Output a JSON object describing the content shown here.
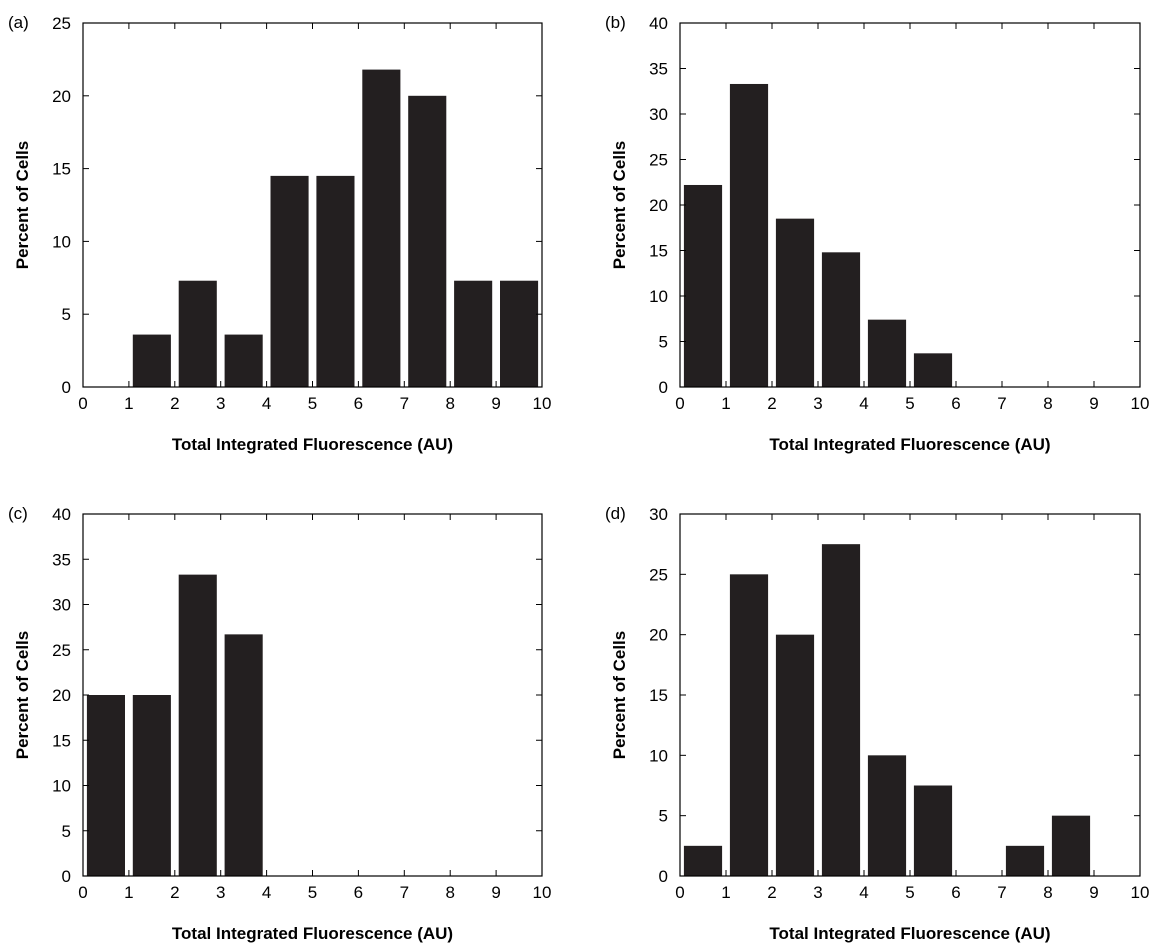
{
  "colors": {
    "bar": "#231f20",
    "axis": "#000000",
    "background": "#ffffff"
  },
  "chart_data": [
    {
      "panel": "(a)",
      "type": "bar",
      "xlabel": "Total Integrated Fluorescence (AU)",
      "ylabel": "Percent of Cells",
      "xlim": [
        0,
        10
      ],
      "ylim": [
        0,
        25
      ],
      "xticks": [
        "0",
        "1",
        "2",
        "3",
        "4",
        "5",
        "6",
        "7",
        "8",
        "9",
        "10"
      ],
      "yticks": [
        "0",
        "5",
        "10",
        "15",
        "20",
        "25"
      ],
      "categories": [
        "0.5",
        "1.5",
        "2.5",
        "3.5",
        "4.5",
        "5.5",
        "6.5",
        "7.5",
        "8.5",
        "9.5"
      ],
      "values": [
        0,
        3.6,
        7.3,
        3.6,
        14.5,
        14.5,
        21.8,
        20.0,
        7.3,
        7.3
      ]
    },
    {
      "panel": "(b)",
      "type": "bar",
      "xlabel": "Total Integrated Fluorescence (AU)",
      "ylabel": "Percent of Cells",
      "xlim": [
        0,
        10
      ],
      "ylim": [
        0,
        40
      ],
      "xticks": [
        "0",
        "1",
        "2",
        "3",
        "4",
        "5",
        "6",
        "7",
        "8",
        "9",
        "10"
      ],
      "yticks": [
        "0",
        "5",
        "10",
        "15",
        "20",
        "25",
        "30",
        "35",
        "40"
      ],
      "categories": [
        "0.5",
        "1.5",
        "2.5",
        "3.5",
        "4.5",
        "5.5",
        "6.5",
        "7.5",
        "8.5",
        "9.5"
      ],
      "values": [
        22.2,
        33.3,
        18.5,
        14.8,
        7.4,
        3.7,
        0,
        0,
        0,
        0
      ]
    },
    {
      "panel": "(c)",
      "type": "bar",
      "xlabel": "Total Integrated Fluorescence (AU)",
      "ylabel": "Percent of Cells",
      "xlim": [
        0,
        10
      ],
      "ylim": [
        0,
        40
      ],
      "xticks": [
        "0",
        "1",
        "2",
        "3",
        "4",
        "5",
        "6",
        "7",
        "8",
        "9",
        "10"
      ],
      "yticks": [
        "0",
        "5",
        "10",
        "15",
        "20",
        "25",
        "30",
        "35",
        "40"
      ],
      "categories": [
        "0.5",
        "1.5",
        "2.5",
        "3.5",
        "4.5",
        "5.5",
        "6.5",
        "7.5",
        "8.5",
        "9.5"
      ],
      "values": [
        20.0,
        20.0,
        33.3,
        26.7,
        0,
        0,
        0,
        0,
        0,
        0
      ]
    },
    {
      "panel": "(d)",
      "type": "bar",
      "xlabel": "Total Integrated Fluorescence (AU)",
      "ylabel": "Percent of Cells",
      "xlim": [
        0,
        10
      ],
      "ylim": [
        0,
        30
      ],
      "xticks": [
        "0",
        "1",
        "2",
        "3",
        "4",
        "5",
        "6",
        "7",
        "8",
        "9",
        "10"
      ],
      "yticks": [
        "0",
        "5",
        "10",
        "15",
        "20",
        "25",
        "30"
      ],
      "categories": [
        "0.5",
        "1.5",
        "2.5",
        "3.5",
        "4.5",
        "5.5",
        "6.5",
        "7.5",
        "8.5",
        "9.5"
      ],
      "values": [
        2.5,
        25.0,
        20.0,
        27.5,
        10.0,
        7.5,
        0,
        2.5,
        5.0,
        0
      ]
    }
  ]
}
